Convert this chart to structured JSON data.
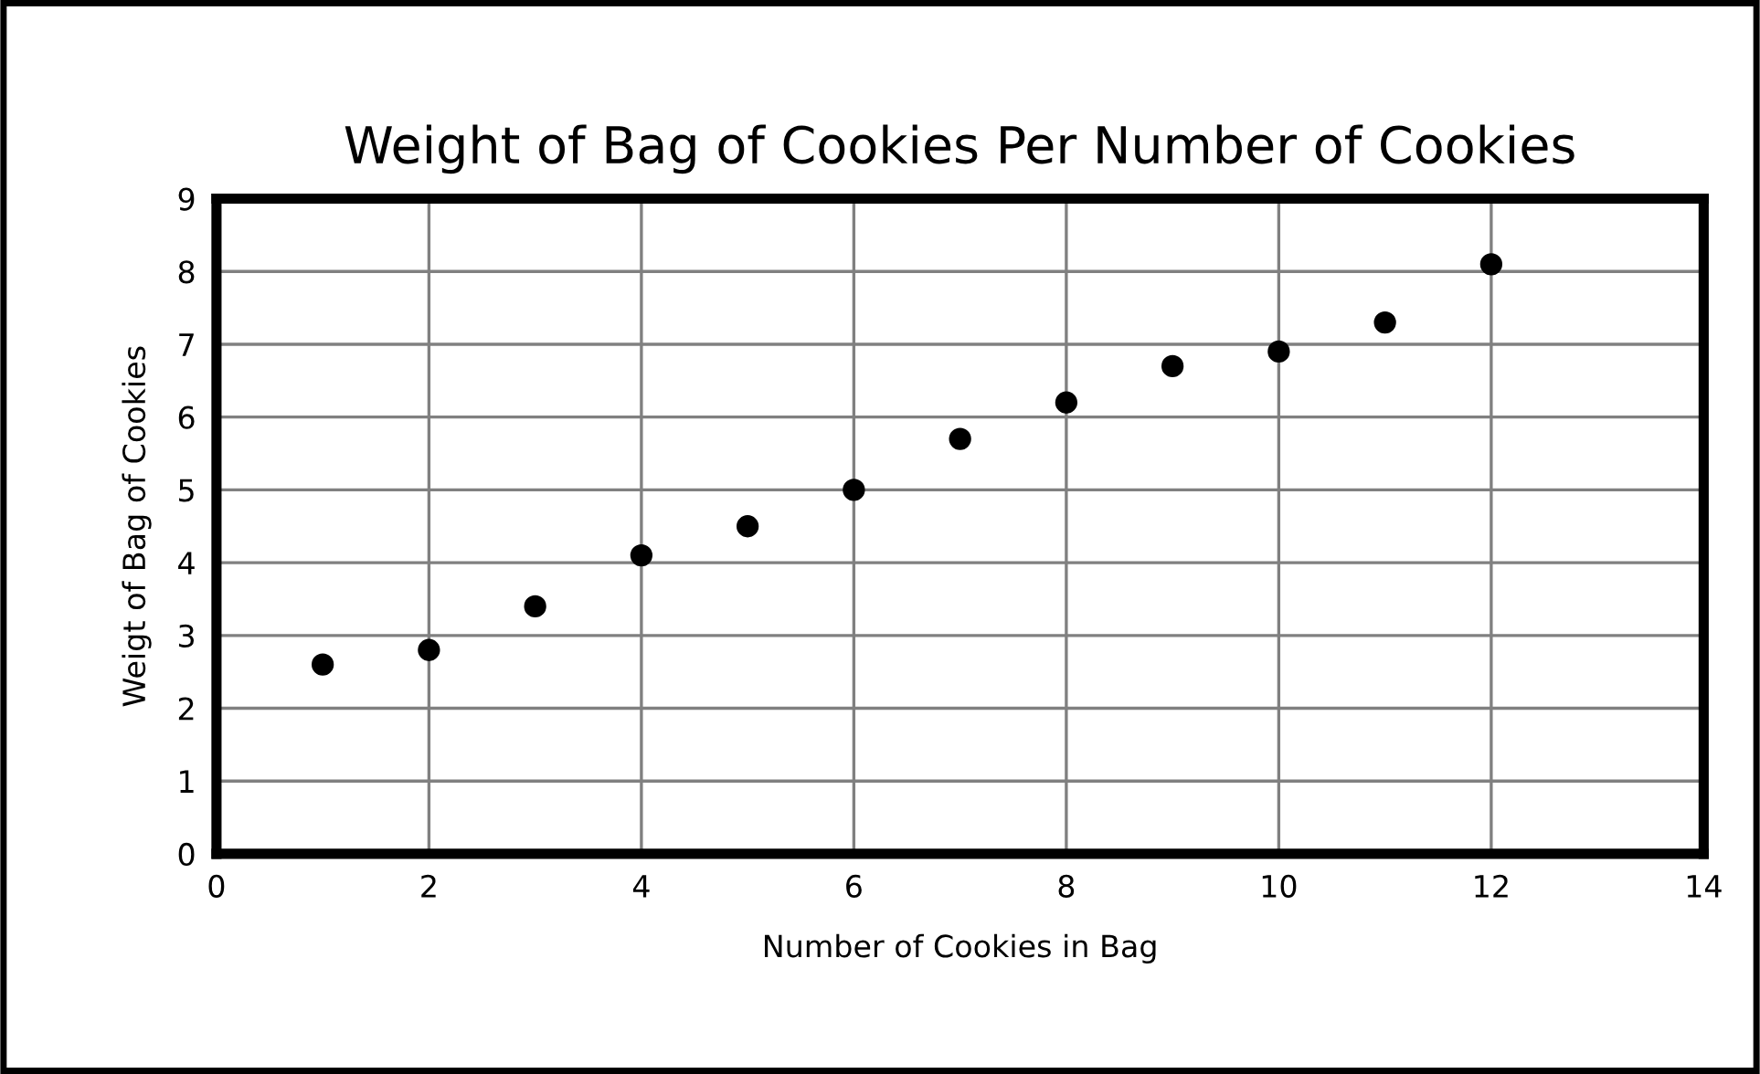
{
  "chart_data": {
    "type": "scatter",
    "title": "Weight of Bag of Cookies Per Number of Cookies",
    "xlabel": "Number of Cookies in Bag",
    "ylabel": "Weigt of Bag of Cookies",
    "x": [
      1,
      2,
      3,
      4,
      5,
      6,
      7,
      8,
      9,
      10,
      11,
      12
    ],
    "series": [
      {
        "color": "#000000",
        "values": [
          2.6,
          2.8,
          3.4,
          4.1,
          4.5,
          5.0,
          5.7,
          6.2,
          6.7,
          6.9,
          7.3,
          8.1
        ]
      }
    ],
    "xlim": [
      0,
      14
    ],
    "xticks": [
      0,
      2,
      4,
      6,
      8,
      10,
      12,
      14
    ],
    "ylim": [
      0,
      9
    ],
    "yticks": [
      0,
      1,
      2,
      3,
      4,
      5,
      6,
      7,
      8,
      9
    ],
    "grid": true,
    "marker": "circle",
    "legend": false
  }
}
